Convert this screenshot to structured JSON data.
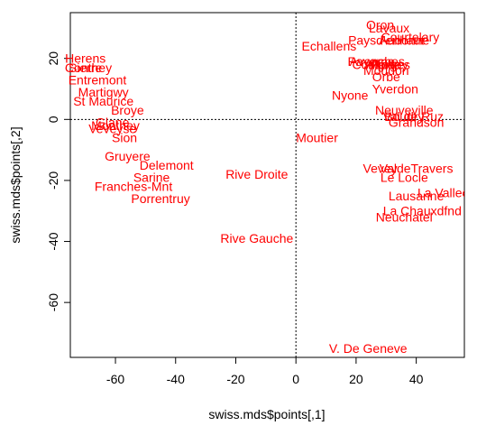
{
  "chart_data": {
    "type": "scatter",
    "title": "",
    "xlabel": "swiss.mds$points[,1]",
    "ylabel": "swiss.mds$points[,2]",
    "xlim": [
      -75,
      56
    ],
    "ylim": [
      -78,
      35
    ],
    "xticks": [
      -60,
      -40,
      -20,
      0,
      20,
      40
    ],
    "yticks": [
      20,
      0,
      -20,
      -40,
      -60
    ],
    "point_color": "#ff0000",
    "reference_lines": {
      "x": 0,
      "y": 0,
      "style": "dotted"
    },
    "points": [
      {
        "label": "Courtelary",
        "x": 38,
        "y": 27
      },
      {
        "label": "Delemont",
        "x": -43,
        "y": -15
      },
      {
        "label": "Franches-Mnt",
        "x": -54,
        "y": -22
      },
      {
        "label": "Moutier",
        "x": 7,
        "y": -6
      },
      {
        "label": "Neuveville",
        "x": 36,
        "y": 3
      },
      {
        "label": "Porrentruy",
        "x": -45,
        "y": -26
      },
      {
        "label": "Broye",
        "x": -56,
        "y": 3
      },
      {
        "label": "Glane",
        "x": -61,
        "y": -1
      },
      {
        "label": "Gruyere",
        "x": -56,
        "y": -12
      },
      {
        "label": "Sarine",
        "x": -48,
        "y": -19
      },
      {
        "label": "Veveyse",
        "x": -61,
        "y": -3
      },
      {
        "label": "Aigle",
        "x": 28,
        "y": 18
      },
      {
        "label": "Aubonne",
        "x": 36,
        "y": 26
      },
      {
        "label": "Avenches",
        "x": 27,
        "y": 19
      },
      {
        "label": "Cossonay",
        "x": 28,
        "y": 18
      },
      {
        "label": "Echallens",
        "x": 11,
        "y": 24
      },
      {
        "label": "Grandson",
        "x": 40,
        "y": -1
      },
      {
        "label": "Lausanne",
        "x": 40,
        "y": -25
      },
      {
        "label": "La Vallee",
        "x": 49,
        "y": -24
      },
      {
        "label": "Lavaux",
        "x": 31,
        "y": 30
      },
      {
        "label": "Morges",
        "x": 31,
        "y": 18
      },
      {
        "label": "Moudon",
        "x": 30,
        "y": 16
      },
      {
        "label": "Nyone",
        "x": 18,
        "y": 8
      },
      {
        "label": "Orbe",
        "x": 30,
        "y": 14
      },
      {
        "label": "Oron",
        "x": 28,
        "y": 31
      },
      {
        "label": "Payerne",
        "x": 25,
        "y": 19
      },
      {
        "label": "Paysd'enhaut",
        "x": 30,
        "y": 26
      },
      {
        "label": "Rolle",
        "x": 30,
        "y": 18
      },
      {
        "label": "Vevey",
        "x": 28,
        "y": -16
      },
      {
        "label": "Yverdon",
        "x": 33,
        "y": 10
      },
      {
        "label": "Conthey",
        "x": -69,
        "y": 17
      },
      {
        "label": "Entremont",
        "x": -66,
        "y": 13
      },
      {
        "label": "Herens",
        "x": -70,
        "y": 20
      },
      {
        "label": "Martigwy",
        "x": -64,
        "y": 9
      },
      {
        "label": "Monthey",
        "x": -60,
        "y": -2
      },
      {
        "label": "St Maurice",
        "x": -64,
        "y": 6
      },
      {
        "label": "Sierre",
        "x": -70,
        "y": 17
      },
      {
        "label": "Sion",
        "x": -57,
        "y": -6
      },
      {
        "label": "Boudry",
        "x": 36,
        "y": 1
      },
      {
        "label": "La Chauxdfnd",
        "x": 42,
        "y": -30
      },
      {
        "label": "Le Locle",
        "x": 36,
        "y": -19
      },
      {
        "label": "Neuchatel",
        "x": 36,
        "y": -32
      },
      {
        "label": "Val de Ruz",
        "x": 39,
        "y": 1
      },
      {
        "label": "ValdeTravers",
        "x": 40,
        "y": -16
      },
      {
        "label": "V. De Geneve",
        "x": 24,
        "y": -75
      },
      {
        "label": "Rive Droite",
        "x": -13,
        "y": -18
      },
      {
        "label": "Rive Gauche",
        "x": -13,
        "y": -39
      }
    ]
  }
}
